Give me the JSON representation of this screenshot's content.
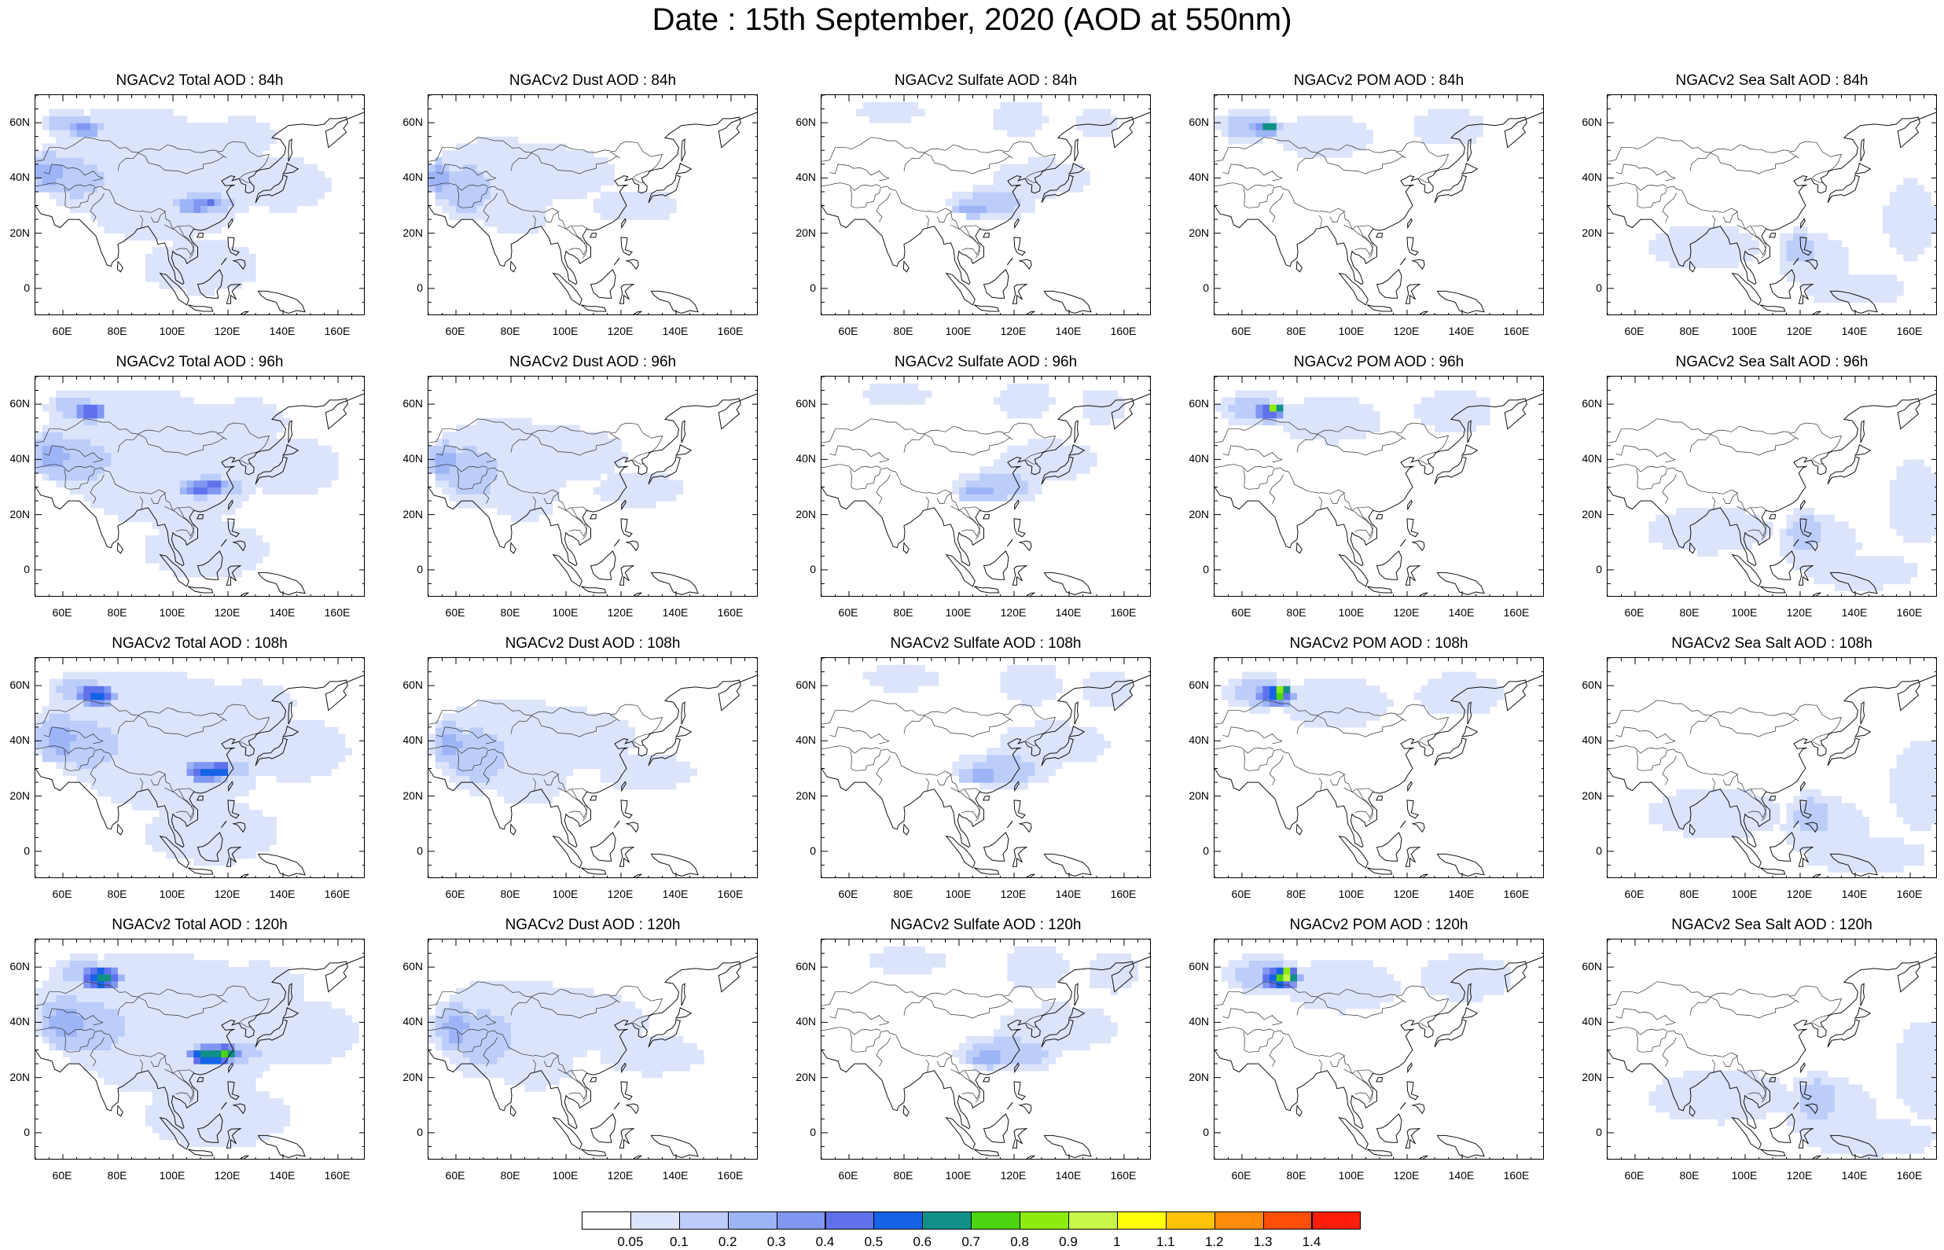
{
  "title": "Date : 15th September, 2020 (AOD at 550nm)",
  "lat_labels": [
    "60N",
    "40N",
    "20N",
    "0"
  ],
  "lon_labels": [
    "60E",
    "80E",
    "100E",
    "120E",
    "140E",
    "160E"
  ],
  "panels": [
    [
      {
        "title": "NGACv2 Total AOD : 84h",
        "species": "total",
        "lead": 84
      },
      {
        "title": "NGACv2 Dust AOD : 84h",
        "species": "dust",
        "lead": 84
      },
      {
        "title": "NGACv2 Sulfate AOD : 84h",
        "species": "sulfate",
        "lead": 84
      },
      {
        "title": "NGACv2 POM AOD : 84h",
        "species": "pom",
        "lead": 84
      },
      {
        "title": "NGACv2 Sea Salt AOD : 84h",
        "species": "seasalt",
        "lead": 84
      }
    ],
    [
      {
        "title": "NGACv2 Total AOD : 96h",
        "species": "total",
        "lead": 96
      },
      {
        "title": "NGACv2 Dust AOD : 96h",
        "species": "dust",
        "lead": 96
      },
      {
        "title": "NGACv2 Sulfate AOD : 96h",
        "species": "sulfate",
        "lead": 96
      },
      {
        "title": "NGACv2 POM AOD : 96h",
        "species": "pom",
        "lead": 96
      },
      {
        "title": "NGACv2 Sea Salt AOD : 96h",
        "species": "seasalt",
        "lead": 96
      }
    ],
    [
      {
        "title": "NGACv2 Total AOD : 108h",
        "species": "total",
        "lead": 108
      },
      {
        "title": "NGACv2 Dust AOD : 108h",
        "species": "dust",
        "lead": 108
      },
      {
        "title": "NGACv2 Sulfate AOD : 108h",
        "species": "sulfate",
        "lead": 108
      },
      {
        "title": "NGACv2 POM AOD : 108h",
        "species": "pom",
        "lead": 108
      },
      {
        "title": "NGACv2 Sea Salt AOD : 108h",
        "species": "seasalt",
        "lead": 108
      }
    ],
    [
      {
        "title": "NGACv2 Total AOD : 120h",
        "species": "total",
        "lead": 120
      },
      {
        "title": "NGACv2 Dust AOD : 120h",
        "species": "dust",
        "lead": 120
      },
      {
        "title": "NGACv2 Sulfate AOD : 120h",
        "species": "sulfate",
        "lead": 120
      },
      {
        "title": "NGACv2 POM AOD : 120h",
        "species": "pom",
        "lead": 120
      },
      {
        "title": "NGACv2 Sea Salt  AOD : 120h",
        "species": "seasalt",
        "lead": 120
      }
    ]
  ],
  "colorbar": {
    "labels": [
      "0.05",
      "0.1",
      "0.2",
      "0.3",
      "0.4",
      "0.5",
      "0.6",
      "0.7",
      "0.8",
      "0.9",
      "1",
      "1.1",
      "1.2",
      "1.3",
      "1.4"
    ],
    "colors": [
      "#ffffff",
      "#dce4fb",
      "#bccdfa",
      "#9db4f7",
      "#8097f2",
      "#5f72ec",
      "#1463e6",
      "#119088",
      "#4bd40f",
      "#8ceb0f",
      "#c8f54a",
      "#ffff0a",
      "#ffc40a",
      "#ff8c0a",
      "#ff4d0a",
      "#ff1e0a"
    ]
  }
}
